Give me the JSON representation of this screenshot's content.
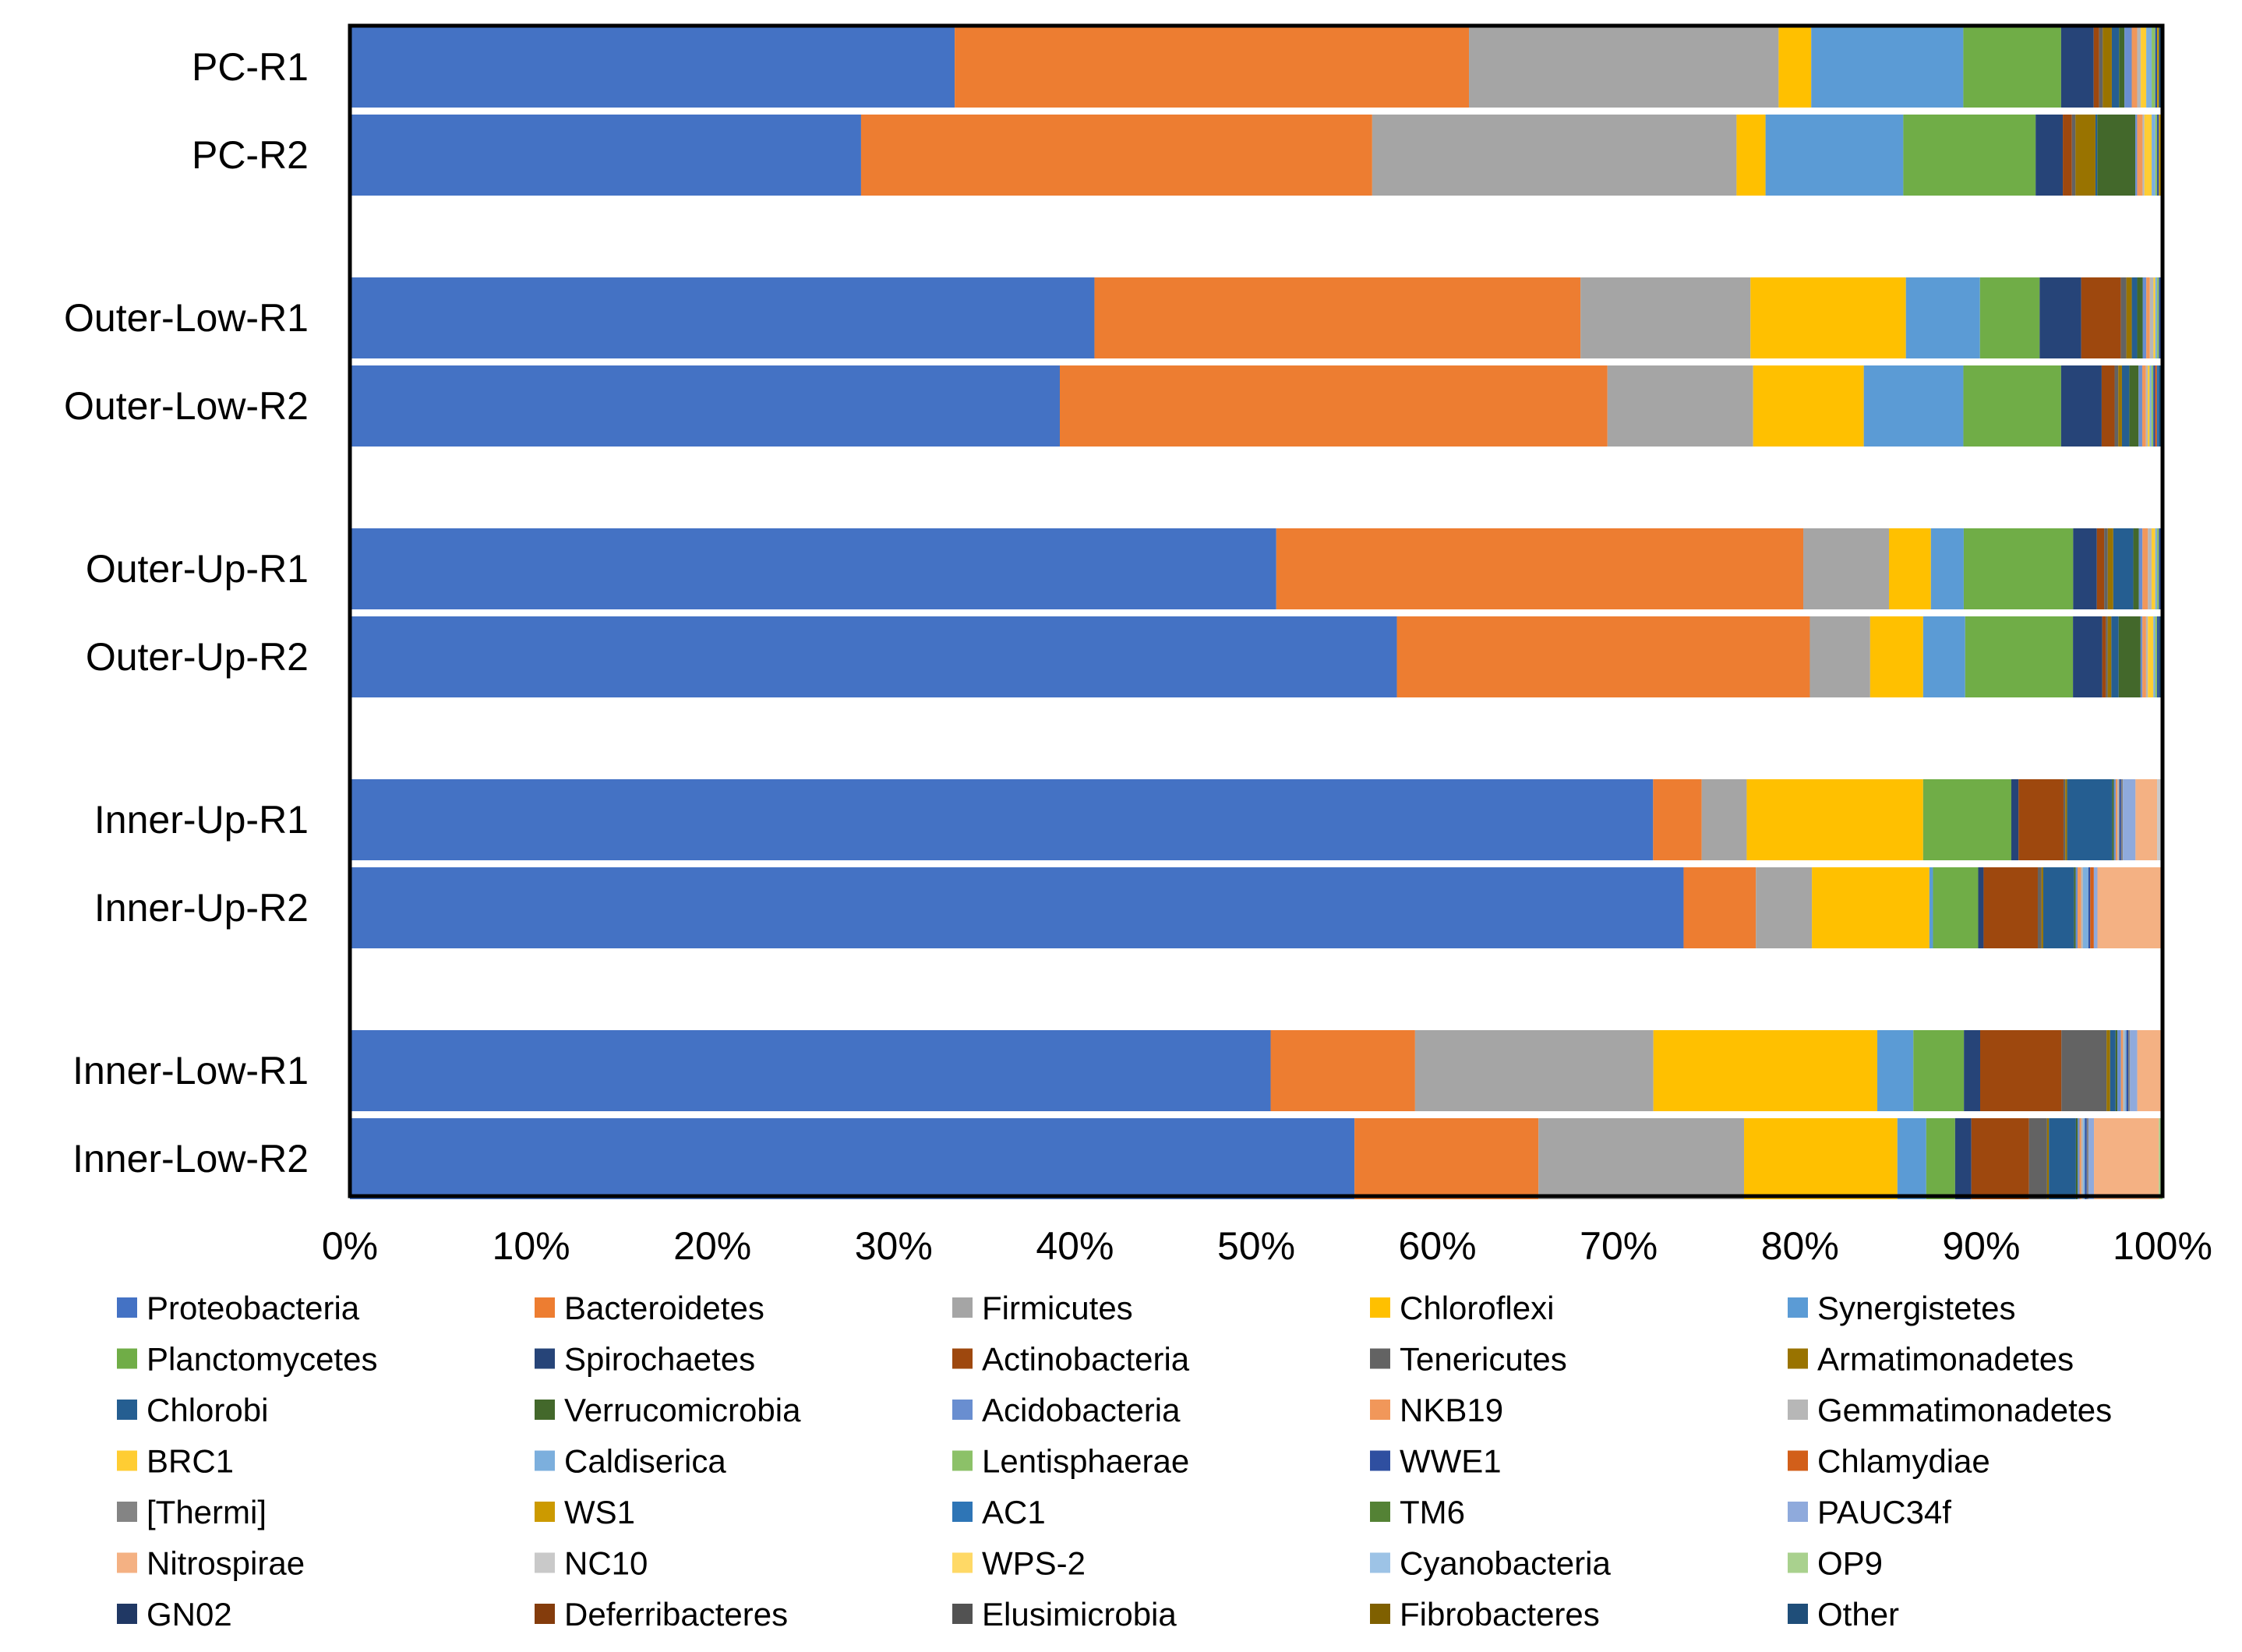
{
  "chart_data": {
    "type": "bar",
    "orientation": "horizontal",
    "stacked": true,
    "percent": true,
    "title": "",
    "xlabel": "",
    "ylabel": "",
    "xlim": [
      0,
      100
    ],
    "x_ticks": [
      "0%",
      "10%",
      "20%",
      "30%",
      "40%",
      "50%",
      "60%",
      "70%",
      "80%",
      "90%",
      "100%"
    ],
    "grid": false,
    "legend_position": "bottom",
    "categories": [
      "PC-R1",
      "PC-R2",
      "Outer-Low-R1",
      "Outer-Low-R2",
      "Outer-Up-R1",
      "Outer-Up-R2",
      "Inner-Up-R1",
      "Inner-Up-R2",
      "Inner-Low-R1",
      "Inner-Low-R2"
    ],
    "series": [
      {
        "name": "Proteobacteria",
        "color": "#4472C4",
        "values": [
          33.4,
          28.2,
          41.2,
          38.5,
          50.8,
          57.3,
          72.4,
          73.8,
          51.0,
          55.7
        ]
      },
      {
        "name": "Bacteroidetes",
        "color": "#ED7D31",
        "values": [
          28.4,
          28.2,
          26.9,
          29.7,
          28.9,
          22.6,
          2.7,
          4.0,
          8.0,
          10.2
        ]
      },
      {
        "name": "Firmicutes",
        "color": "#A5A5A5",
        "values": [
          17.1,
          20.1,
          9.4,
          7.9,
          4.7,
          3.3,
          2.5,
          3.1,
          13.2,
          11.4
        ]
      },
      {
        "name": "Chloroflexi",
        "color": "#FFC000",
        "values": [
          1.8,
          1.6,
          8.6,
          6.0,
          2.3,
          2.9,
          9.8,
          6.5,
          12.4,
          8.5
        ]
      },
      {
        "name": "Synergistetes",
        "color": "#5B9BD5",
        "values": [
          8.4,
          7.6,
          4.1,
          5.4,
          1.8,
          2.3,
          0.0,
          0.2,
          2.0,
          1.6
        ]
      },
      {
        "name": "Planctomycetes",
        "color": "#70AD47",
        "values": [
          5.4,
          7.3,
          3.3,
          5.3,
          6.0,
          5.9,
          4.9,
          2.5,
          2.8,
          1.6
        ]
      },
      {
        "name": "Spirochaetes",
        "color": "#264478",
        "values": [
          1.8,
          1.5,
          2.3,
          2.2,
          1.3,
          1.6,
          0.4,
          0.3,
          0.9,
          0.9
        ]
      },
      {
        "name": "Actinobacteria",
        "color": "#9E480E",
        "values": [
          0.3,
          0.5,
          2.2,
          0.7,
          0.4,
          0.2,
          2.5,
          3.0,
          4.5,
          3.2
        ]
      },
      {
        "name": "Tenericutes",
        "color": "#636363",
        "values": [
          0.2,
          0.2,
          0.3,
          0.2,
          0.2,
          0.1,
          0.1,
          0.2,
          2.5,
          1.0
        ]
      },
      {
        "name": "Armatimonadetes",
        "color": "#997300",
        "values": [
          0.5,
          1.1,
          0.3,
          0.2,
          0.3,
          0.2,
          0.1,
          0.1,
          0.2,
          0.1
        ]
      },
      {
        "name": "Chlorobi",
        "color": "#255E91",
        "values": [
          0.4,
          0.1,
          0.3,
          0.4,
          1.1,
          0.4,
          2.5,
          1.7,
          0.3,
          1.5
        ]
      },
      {
        "name": "Verrucomicrobia",
        "color": "#43682B",
        "values": [
          0.3,
          2.1,
          0.3,
          0.5,
          0.3,
          1.2,
          0.1,
          0.1,
          0.1,
          0.1
        ]
      },
      {
        "name": "Acidobacteria",
        "color": "#698ED0",
        "values": [
          0.4,
          0.1,
          0.2,
          0.2,
          0.2,
          0.1,
          0.1,
          0.1,
          0.2,
          0.1
        ]
      },
      {
        "name": "NKB19",
        "color": "#F1975A",
        "values": [
          0.3,
          0.3,
          0.2,
          0.2,
          0.3,
          0.2,
          0.1,
          0.2,
          0.1,
          0.1
        ]
      },
      {
        "name": "Gemmatimonadetes",
        "color": "#B7B7B7",
        "values": [
          0.2,
          0.1,
          0.2,
          0.1,
          0.2,
          0.1,
          0.1,
          0.1,
          0.1,
          0.1
        ]
      },
      {
        "name": "BRC1",
        "color": "#FFCD33",
        "values": [
          0.3,
          0.4,
          0.1,
          0.1,
          0.2,
          0.3,
          0.0,
          0.0,
          0.0,
          0.0
        ]
      },
      {
        "name": "Caldiserica",
        "color": "#7CAFDD",
        "values": [
          0.3,
          0.2,
          0.1,
          0.1,
          0.1,
          0.1,
          0.0,
          0.3,
          0.1,
          0.1
        ]
      },
      {
        "name": "Lentisphaerae",
        "color": "#8CC168",
        "values": [
          0.2,
          0.1,
          0.1,
          0.1,
          0.1,
          0.1,
          0.0,
          0.0,
          0.0,
          0.0
        ]
      },
      {
        "name": "WWE1",
        "color": "#2F4FA0",
        "values": [
          0.1,
          0.1,
          0.1,
          0.1,
          0.1,
          0.1,
          0.1,
          0.1,
          0.1,
          0.1
        ]
      },
      {
        "name": "Chlamydiae",
        "color": "#D25F1A",
        "values": [
          0.0,
          0.0,
          0.0,
          0.1,
          0.0,
          0.0,
          0.0,
          0.2,
          0.0,
          0.0
        ]
      },
      {
        "name": "[Thermi]",
        "color": "#848484",
        "values": [
          0.0,
          0.0,
          0.0,
          0.0,
          0.0,
          0.0,
          0.1,
          0.0,
          0.1,
          0.1
        ]
      },
      {
        "name": "WS1",
        "color": "#CC9A00",
        "values": [
          0.1,
          0.1,
          0.0,
          0.0,
          0.0,
          0.0,
          0.0,
          0.0,
          0.0,
          0.0
        ]
      },
      {
        "name": "AC1",
        "color": "#2E75B6",
        "values": [
          0.0,
          0.0,
          0.0,
          0.1,
          0.0,
          0.0,
          0.0,
          0.0,
          0.0,
          0.0
        ]
      },
      {
        "name": "TM6",
        "color": "#548235",
        "values": [
          0.0,
          0.0,
          0.0,
          0.0,
          0.0,
          0.0,
          0.0,
          0.0,
          0.0,
          0.0
        ]
      },
      {
        "name": "PAUC34f",
        "color": "#8FAADC",
        "values": [
          0.0,
          0.0,
          0.0,
          0.0,
          0.0,
          0.0,
          0.7,
          0.2,
          0.4,
          0.3
        ]
      },
      {
        "name": "Nitrospirae",
        "color": "#F4B183",
        "values": [
          0.0,
          0.0,
          0.0,
          0.0,
          0.0,
          0.0,
          1.2,
          3.5,
          1.4,
          3.6
        ]
      },
      {
        "name": "NC10",
        "color": "#C9C9C9",
        "values": [
          0.0,
          0.0,
          0.0,
          0.0,
          0.0,
          0.0,
          0.2,
          0.1,
          0.0,
          0.0
        ]
      },
      {
        "name": "WPS-2",
        "color": "#FFD966",
        "values": [
          0.0,
          0.0,
          0.0,
          0.0,
          0.0,
          0.0,
          0.0,
          0.0,
          0.0,
          0.0
        ]
      },
      {
        "name": "Cyanobacteria",
        "color": "#9DC3E6",
        "values": [
          0.0,
          0.0,
          0.0,
          0.0,
          0.0,
          0.0,
          0.1,
          0.0,
          0.0,
          0.0
        ]
      },
      {
        "name": "OP9",
        "color": "#A9D18E",
        "values": [
          0.0,
          0.0,
          0.0,
          0.0,
          0.0,
          0.0,
          0.0,
          0.0,
          0.0,
          0.2
        ]
      },
      {
        "name": "GN02",
        "color": "#203864",
        "values": [
          0.0,
          0.0,
          0.0,
          0.0,
          0.0,
          0.0,
          0.0,
          0.0,
          0.0,
          0.0
        ]
      },
      {
        "name": "Deferribacteres",
        "color": "#843C0C",
        "values": [
          0.0,
          0.0,
          0.0,
          0.0,
          0.0,
          0.0,
          0.0,
          0.0,
          0.0,
          0.0
        ]
      },
      {
        "name": "Elusimicrobia",
        "color": "#525252",
        "values": [
          0.0,
          0.0,
          0.0,
          0.0,
          0.0,
          0.0,
          0.0,
          0.0,
          0.0,
          0.0
        ]
      },
      {
        "name": "Fibrobacteres",
        "color": "#7F6000",
        "values": [
          0.0,
          0.0,
          0.0,
          0.0,
          0.0,
          0.0,
          0.0,
          0.0,
          0.0,
          0.0
        ]
      },
      {
        "name": "Other",
        "color": "#1F4E79",
        "values": [
          0.2,
          0.1,
          0.1,
          0.2,
          0.1,
          0.2,
          0.0,
          0.0,
          0.0,
          0.0
        ]
      }
    ]
  }
}
